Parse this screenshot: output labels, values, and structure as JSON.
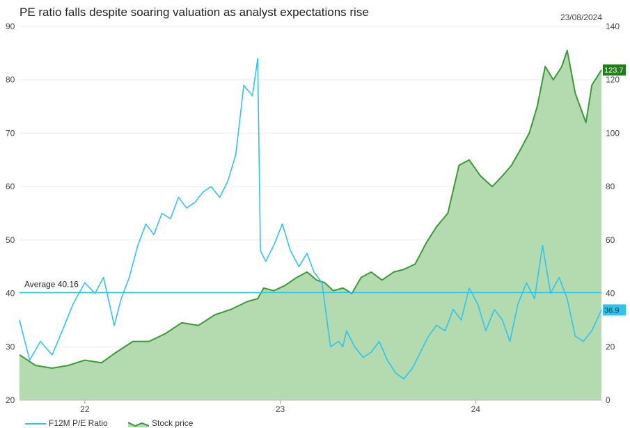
{
  "chart_data": {
    "type": "line",
    "title": "PE ratio falls despite soaring valuation as analyst expectations rise",
    "date": "23/08/2024",
    "x_tick_labels": [
      "22",
      "23",
      "24"
    ],
    "x_range": [
      "2021-09-01",
      "2024-08-23"
    ],
    "y_left": {
      "ticks": [
        20,
        30,
        40,
        50,
        60,
        70,
        80,
        90
      ],
      "ylim": [
        20,
        90
      ]
    },
    "y_right": {
      "ticks": [
        0,
        20,
        40,
        60,
        80,
        100,
        120,
        140
      ],
      "ylim": [
        0,
        140
      ]
    },
    "average": {
      "label": "Average 40.16",
      "value": 40.16,
      "axis": "left"
    },
    "legend": [
      "F12M P/E Ratio",
      "Stock price"
    ],
    "series": [
      {
        "name": "F12M P/E Ratio",
        "axis": "left",
        "color": "#2ec4f0",
        "last_label": "36.9",
        "x": [
          "2021-09-01",
          "2021-09-20",
          "2021-10-10",
          "2021-11-01",
          "2021-11-20",
          "2021-12-10",
          "2022-01-01",
          "2022-01-20",
          "2022-02-05",
          "2022-02-25",
          "2022-03-10",
          "2022-03-25",
          "2022-04-10",
          "2022-04-25",
          "2022-05-10",
          "2022-05-25",
          "2022-06-10",
          "2022-06-25",
          "2022-07-10",
          "2022-07-25",
          "2022-08-10",
          "2022-08-25",
          "2022-09-10",
          "2022-09-25",
          "2022-10-10",
          "2022-10-25",
          "2022-11-10",
          "2022-11-20",
          "2022-11-25",
          "2022-12-05",
          "2022-12-20",
          "2023-01-05",
          "2023-01-20",
          "2023-02-05",
          "2023-02-20",
          "2023-03-05",
          "2023-03-20",
          "2023-04-05",
          "2023-04-20",
          "2023-04-28",
          "2023-05-05",
          "2023-05-20",
          "2023-06-05",
          "2023-06-20",
          "2023-07-05",
          "2023-07-20",
          "2023-08-05",
          "2023-08-20",
          "2023-09-05",
          "2023-09-20",
          "2023-10-05",
          "2023-10-20",
          "2023-11-05",
          "2023-11-20",
          "2023-12-05",
          "2023-12-20",
          "2024-01-05",
          "2024-01-20",
          "2024-02-05",
          "2024-02-20",
          "2024-03-05",
          "2024-03-20",
          "2024-04-05",
          "2024-04-20",
          "2024-05-05",
          "2024-05-20",
          "2024-06-05",
          "2024-06-20",
          "2024-07-05",
          "2024-07-20",
          "2024-08-05",
          "2024-08-23"
        ],
        "values": [
          35,
          27.5,
          31,
          28.5,
          33,
          38,
          42,
          40,
          43,
          34,
          39,
          43,
          49,
          53,
          51,
          55,
          54,
          58,
          56,
          57,
          59,
          60,
          58,
          61,
          66,
          79,
          77,
          84,
          48,
          46,
          49,
          53,
          48,
          45,
          47.5,
          44,
          42,
          30,
          31,
          30,
          33,
          30,
          28,
          29,
          31,
          27.5,
          25,
          24,
          26,
          29,
          32,
          34,
          33,
          37,
          35,
          41,
          38,
          33,
          37,
          35,
          31,
          38,
          42,
          39,
          49,
          40,
          43,
          39,
          32,
          31,
          33,
          36.9
        ]
      },
      {
        "name": "Stock price",
        "axis": "right",
        "color": "#3a9a35",
        "fill": "#b4dab0",
        "last_label": "123.7",
        "x": [
          "2021-09-01",
          "2021-10-01",
          "2021-11-01",
          "2021-12-01",
          "2022-01-01",
          "2022-02-01",
          "2022-03-01",
          "2022-04-01",
          "2022-05-01",
          "2022-06-01",
          "2022-07-01",
          "2022-08-01",
          "2022-09-01",
          "2022-10-01",
          "2022-11-01",
          "2022-11-20",
          "2022-12-01",
          "2022-12-20",
          "2023-01-10",
          "2023-02-01",
          "2023-02-20",
          "2023-03-10",
          "2023-03-25",
          "2023-04-10",
          "2023-04-28",
          "2023-05-15",
          "2023-06-01",
          "2023-06-20",
          "2023-07-10",
          "2023-08-01",
          "2023-08-20",
          "2023-09-10",
          "2023-10-01",
          "2023-10-20",
          "2023-11-10",
          "2023-12-01",
          "2023-12-20",
          "2024-01-10",
          "2024-02-01",
          "2024-02-20",
          "2024-03-08",
          "2024-03-25",
          "2024-04-10",
          "2024-04-25",
          "2024-05-10",
          "2024-05-25",
          "2024-06-10",
          "2024-06-20",
          "2024-07-05",
          "2024-07-25",
          "2024-08-05",
          "2024-08-23"
        ],
        "values": [
          17,
          13,
          12,
          13,
          15,
          14,
          18,
          22,
          22,
          25,
          29,
          28,
          32,
          34,
          37,
          38,
          42,
          41,
          43,
          46,
          48,
          45,
          44,
          41,
          42,
          40,
          46,
          48,
          45,
          48,
          49,
          51,
          59,
          65,
          70,
          88,
          90,
          84,
          80,
          84,
          88,
          94,
          100,
          110,
          125,
          120,
          125,
          131,
          115,
          104,
          118,
          123.7
        ]
      }
    ]
  }
}
